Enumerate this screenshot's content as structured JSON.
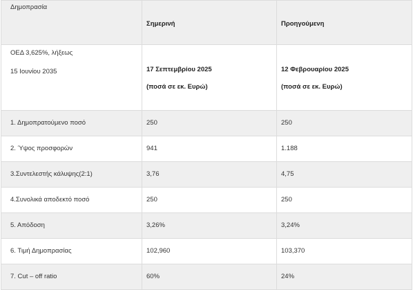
{
  "header": {
    "label": "Δημοπρασία",
    "col_current": "Σημερινή",
    "col_previous": "Προηγούμενη"
  },
  "bond": {
    "line1": "ΟΕΔ 3,625%, λήξεως",
    "line2": "15 Ιουνίου 2035",
    "current_date": "17 Σεπτεμβρίου 2025",
    "current_unit": "(ποσά σε εκ. Ευρώ)",
    "previous_date": "12 Φεβρουαρίου 2025",
    "previous_unit": "(ποσά σε εκ. Ευρώ)"
  },
  "rows": [
    {
      "label": "1. Δημοπρατούμενο ποσό",
      "current": "250",
      "previous": "250"
    },
    {
      "label": "2. Ύψος προσφορών",
      "current": "941",
      "previous": "1.188"
    },
    {
      "label": "3.Συντελεστής κάλυψης(2:1)",
      "current": "3,76",
      "previous": "4,75"
    },
    {
      "label": "4.Συνολικά αποδεκτό ποσό",
      "current": "250",
      "previous": "250"
    },
    {
      "label": "5. Απόδοση",
      "current": "3,26%",
      "previous": "3,24%"
    },
    {
      "label": "6. Τιμή Δημοπρασίας",
      "current": "102,960",
      "previous": "103,370"
    },
    {
      "label": "7. Cut – off ratio",
      "current": "60%",
      "previous": "24%"
    }
  ]
}
